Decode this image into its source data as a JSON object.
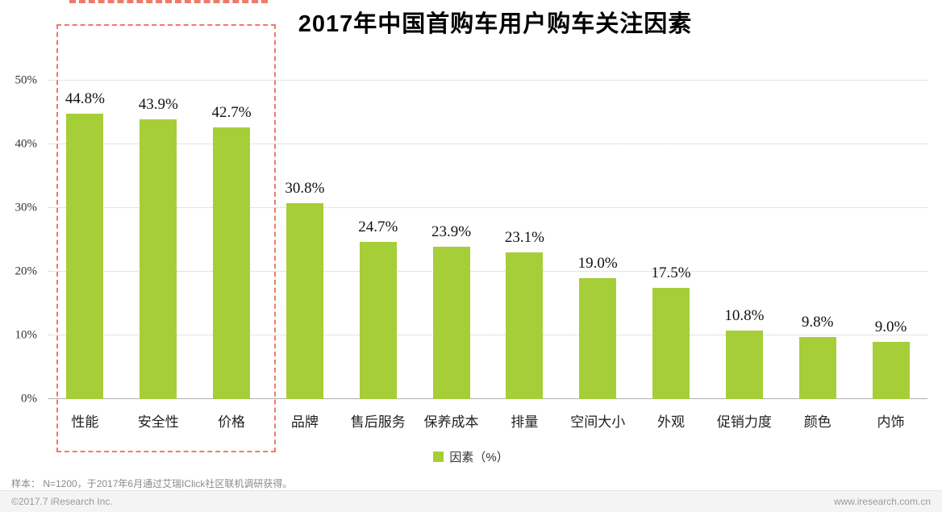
{
  "chart_data": {
    "type": "bar",
    "title": "2017年中国首购车用户购车关注因素",
    "categories": [
      "性能",
      "安全性",
      "价格",
      "品牌",
      "售后服务",
      "保养成本",
      "排量",
      "空间大小",
      "外观",
      "促销力度",
      "颜色",
      "内饰"
    ],
    "values": [
      44.8,
      43.9,
      42.7,
      30.8,
      24.7,
      23.9,
      23.1,
      19.0,
      17.5,
      10.8,
      9.8,
      9.0
    ],
    "value_labels": [
      "44.8%",
      "43.9%",
      "42.7%",
      "30.8%",
      "24.7%",
      "23.9%",
      "23.1%",
      "19.0%",
      "17.5%",
      "10.8%",
      "9.8%",
      "9.0%"
    ],
    "ylim": [
      0,
      50
    ],
    "yticks": [
      0,
      10,
      20,
      30,
      40,
      50
    ],
    "ytick_labels": [
      "0%",
      "10%",
      "20%",
      "30%",
      "40%",
      "50%"
    ],
    "legend": "因素（%）",
    "bar_color": "#a6ce39",
    "grid": true,
    "legend_position": "bottom-center",
    "highlight": {
      "categories": [
        "性能",
        "安全性",
        "价格"
      ],
      "border_color": "#ee7a6a",
      "style": "dashed-box"
    }
  },
  "footer": {
    "sample_note": "样本： N=1200，于2017年6月通过艾瑞IClick社区联机调研获得。",
    "copyright": "©2017.7 iResearch Inc.",
    "website": "www.iresearch.com.cn"
  }
}
